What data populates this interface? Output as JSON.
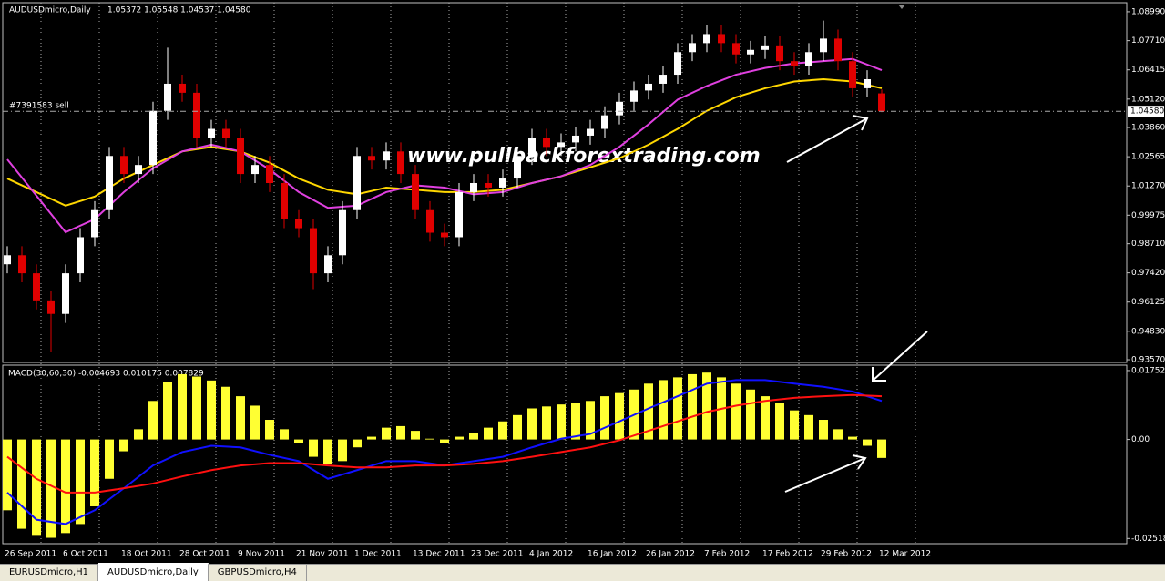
{
  "chart_data": [
    {
      "type": "candlestick",
      "title": "AUDUSDmicro,Daily",
      "quote": "1.05372 1.05548 1.04537 1.04580",
      "watermark": "www.pullbackforextrading.com",
      "order_label": "#7391583 sell",
      "price_line": {
        "value": 1.0458,
        "label": "1.04580"
      },
      "up_color": "#ffffff",
      "down_color": "#e00000",
      "categories": [
        "26 Sep 2011",
        null,
        null,
        null,
        "6 Oct 2011",
        null,
        null,
        null,
        "18 Oct 2011",
        null,
        null,
        null,
        "28 Oct 2011",
        null,
        null,
        null,
        "9 Nov 2011",
        null,
        null,
        null,
        "21 Nov 2011",
        null,
        null,
        null,
        "1 Dec 2011",
        null,
        null,
        null,
        "13 Dec 2011",
        null,
        null,
        null,
        "23 Dec 2011",
        null,
        null,
        null,
        "4 Jan 2012",
        null,
        null,
        null,
        "16 Jan 2012",
        null,
        null,
        null,
        "26 Jan 2012",
        null,
        null,
        null,
        "7 Feb 2012",
        null,
        null,
        null,
        "17 Feb 2012",
        null,
        null,
        null,
        "29 Feb 2012",
        null,
        null,
        null,
        "12 Mar 2012"
      ],
      "open": [
        0.978,
        0.982,
        0.974,
        0.962,
        0.956,
        0.974,
        0.99,
        1.002,
        1.026,
        1.018,
        1.022,
        1.046,
        1.058,
        1.054,
        1.034,
        1.038,
        1.034,
        1.018,
        1.022,
        1.014,
        0.998,
        0.994,
        0.974,
        0.982,
        1.002,
        1.026,
        1.024,
        1.028,
        1.018,
        1.002,
        0.992,
        0.99,
        1.01,
        1.014,
        1.012,
        1.016,
        1.026,
        1.034,
        1.03,
        1.032,
        1.035,
        1.038,
        1.044,
        1.05,
        1.055,
        1.058,
        1.062,
        1.072,
        1.076,
        1.08,
        1.076,
        1.071,
        1.073,
        1.075,
        1.068,
        1.066,
        1.072,
        1.078,
        1.068,
        1.056,
        1.05372
      ],
      "high": [
        0.986,
        0.986,
        0.978,
        0.966,
        0.978,
        0.994,
        1.006,
        1.03,
        1.03,
        1.026,
        1.05,
        1.074,
        1.062,
        1.058,
        1.042,
        1.042,
        1.038,
        1.026,
        1.026,
        1.018,
        1.002,
        0.998,
        0.986,
        1.006,
        1.03,
        1.03,
        1.032,
        1.032,
        1.022,
        1.006,
        0.996,
        1.014,
        1.018,
        1.018,
        1.02,
        1.03,
        1.038,
        1.038,
        1.036,
        1.039,
        1.042,
        1.048,
        1.054,
        1.059,
        1.062,
        1.066,
        1.076,
        1.08,
        1.084,
        1.084,
        1.08,
        1.077,
        1.079,
        1.079,
        1.072,
        1.076,
        1.086,
        1.082,
        1.072,
        1.064,
        1.05548
      ],
      "low": [
        0.974,
        0.97,
        0.958,
        0.939,
        0.952,
        0.97,
        0.986,
        0.998,
        1.014,
        1.014,
        1.018,
        1.042,
        1.05,
        1.03,
        1.03,
        1.03,
        1.014,
        1.014,
        1.01,
        0.994,
        0.99,
        0.967,
        0.97,
        0.978,
        0.998,
        1.02,
        1.02,
        1.014,
        0.998,
        0.988,
        0.986,
        0.986,
        1.006,
        1.008,
        1.008,
        1.012,
        1.022,
        1.026,
        1.026,
        1.028,
        1.031,
        1.034,
        1.04,
        1.046,
        1.051,
        1.054,
        1.058,
        1.068,
        1.072,
        1.072,
        1.067,
        1.067,
        1.069,
        1.064,
        1.062,
        1.062,
        1.068,
        1.064,
        1.052,
        1.052,
        1.04537
      ],
      "close": [
        0.982,
        0.974,
        0.962,
        0.956,
        0.974,
        0.99,
        1.002,
        1.026,
        1.018,
        1.022,
        1.046,
        1.058,
        1.054,
        1.034,
        1.038,
        1.034,
        1.018,
        1.022,
        1.014,
        0.998,
        0.994,
        0.974,
        0.982,
        1.002,
        1.026,
        1.024,
        1.028,
        1.018,
        1.002,
        0.992,
        0.99,
        1.01,
        1.014,
        1.012,
        1.016,
        1.026,
        1.034,
        1.03,
        1.032,
        1.035,
        1.038,
        1.044,
        1.05,
        1.055,
        1.058,
        1.062,
        1.072,
        1.076,
        1.08,
        1.076,
        1.071,
        1.073,
        1.075,
        1.068,
        1.066,
        1.072,
        1.078,
        1.068,
        1.056,
        1.06,
        1.0458
      ],
      "series": [
        {
          "color": "#ffd700",
          "x": [
            0,
            2,
            4,
            6,
            8,
            10,
            12,
            14,
            16,
            18,
            20,
            22,
            24,
            26,
            28,
            30,
            32,
            34,
            36,
            38,
            40,
            42,
            44,
            46,
            48,
            50,
            52,
            54,
            56,
            58,
            60
          ],
          "values": [
            1.016,
            1.01,
            1.004,
            1.008,
            1.016,
            1.022,
            1.028,
            1.03,
            1.028,
            1.023,
            1.016,
            1.011,
            1.009,
            1.012,
            1.011,
            1.01,
            1.01,
            1.011,
            1.014,
            1.017,
            1.021,
            1.025,
            1.031,
            1.038,
            1.046,
            1.052,
            1.056,
            1.059,
            1.06,
            1.059,
            1.056
          ]
        },
        {
          "color": "#e040e0",
          "x": [
            0,
            2,
            4,
            6,
            8,
            10,
            12,
            14,
            16,
            18,
            20,
            22,
            24,
            26,
            28,
            30,
            32,
            34,
            36,
            38,
            40,
            42,
            44,
            46,
            48,
            50,
            52,
            54,
            56,
            58,
            60
          ],
          "values": [
            1.0245,
            1.0084,
            0.9922,
            0.998,
            1.01,
            1.0205,
            1.028,
            1.031,
            1.028,
            1.02,
            1.01,
            1.003,
            1.004,
            1.01,
            1.013,
            1.012,
            1.009,
            1.01,
            1.014,
            1.017,
            1.022,
            1.03,
            1.04,
            1.051,
            1.057,
            1.062,
            1.065,
            1.067,
            1.068,
            1.069,
            1.064
          ]
        }
      ],
      "ylim": [
        0.9345,
        1.0939
      ],
      "yticks": [
        {
          "value": 1.0899,
          "label": "1.08990"
        },
        {
          "value": 1.0771,
          "label": "1.07710"
        },
        {
          "value": 1.06415,
          "label": "1.06415"
        },
        {
          "value": 1.0512,
          "label": "1.05120"
        },
        {
          "value": 1.0386,
          "label": "1.03860"
        },
        {
          "value": 1.02565,
          "label": "1.02565"
        },
        {
          "value": 1.0127,
          "label": "1.01270"
        },
        {
          "value": 0.99975,
          "label": "0.99975"
        },
        {
          "value": 0.9871,
          "label": "0.98710"
        },
        {
          "value": 0.9742,
          "label": "0.97420"
        },
        {
          "value": 0.96125,
          "label": "0.96125"
        },
        {
          "value": 0.9483,
          "label": "0.94830"
        },
        {
          "value": 0.9357,
          "label": "0.93570"
        }
      ]
    },
    {
      "type": "macd",
      "title": "MACD(30,60,30) -0.004693 0.010175 0.007829",
      "histogram": {
        "color": "#ffff33",
        "values": [
          -0.018,
          -0.0227,
          -0.0245,
          -0.025,
          -0.0238,
          -0.0215,
          -0.017,
          -0.01,
          -0.003,
          0.0026,
          0.0098,
          0.0146,
          0.0166,
          0.016,
          0.015,
          0.0134,
          0.011,
          0.0086,
          0.005,
          0.0026,
          -0.0009,
          -0.0044,
          -0.0062,
          -0.0055,
          -0.002,
          0.0007,
          0.003,
          0.0034,
          0.0022,
          0.0002,
          -0.0009,
          0.0007,
          0.0017,
          0.003,
          0.0046,
          0.0062,
          0.0079,
          0.0084,
          0.0089,
          0.0094,
          0.0098,
          0.011,
          0.0118,
          0.0127,
          0.0142,
          0.0151,
          0.0158,
          0.0166,
          0.017,
          0.0158,
          0.0142,
          0.0127,
          0.011,
          0.0094,
          0.0074,
          0.0062,
          0.005,
          0.0026,
          0.0007,
          -0.0016,
          -0.004693
        ]
      },
      "series": [
        {
          "color": "#1010ff",
          "x": [
            0,
            2,
            4,
            6,
            8,
            10,
            12,
            14,
            16,
            18,
            20,
            22,
            24,
            26,
            28,
            30,
            32,
            34,
            36,
            38,
            40,
            42,
            44,
            46,
            48,
            50,
            52,
            54,
            56,
            58,
            60
          ],
          "values": [
            -0.0135,
            -0.0204,
            -0.0215,
            -0.018,
            -0.0124,
            -0.0066,
            -0.0032,
            -0.0016,
            -0.002,
            -0.0039,
            -0.0055,
            -0.01,
            -0.0078,
            -0.0055,
            -0.0055,
            -0.0066,
            -0.0055,
            -0.0044,
            -0.002,
            0.0002,
            0.0014,
            0.0046,
            0.0079,
            0.011,
            0.0142,
            0.0151,
            0.0151,
            0.0142,
            0.0134,
            0.0122,
            0.0098
          ]
        },
        {
          "color": "#ff1010",
          "x": [
            0,
            2,
            4,
            6,
            8,
            10,
            12,
            14,
            16,
            18,
            20,
            22,
            24,
            26,
            28,
            30,
            32,
            34,
            36,
            38,
            40,
            42,
            44,
            46,
            48,
            50,
            52,
            54,
            56,
            58,
            60
          ],
          "values": [
            -0.0044,
            -0.01,
            -0.0135,
            -0.0135,
            -0.0124,
            -0.0112,
            -0.0094,
            -0.0078,
            -0.0066,
            -0.006,
            -0.006,
            -0.0066,
            -0.0071,
            -0.0071,
            -0.0066,
            -0.0066,
            -0.0062,
            -0.0055,
            -0.0044,
            -0.0032,
            -0.002,
            -0.0002,
            0.0022,
            0.0046,
            0.007,
            0.0086,
            0.0098,
            0.0106,
            0.011,
            0.0113,
            0.011
          ]
        }
      ],
      "ylim": [
        -0.0265,
        0.0189
      ],
      "yticks": [
        0.017523,
        {
          "value": 0,
          "label": "0.00"
        },
        -0.02518
      ]
    }
  ],
  "tabs": [
    "EURUSDmicro,H1",
    "AUDUSDmicro,Daily",
    "GBPUSDmicro,H4"
  ],
  "active_tab": 1
}
